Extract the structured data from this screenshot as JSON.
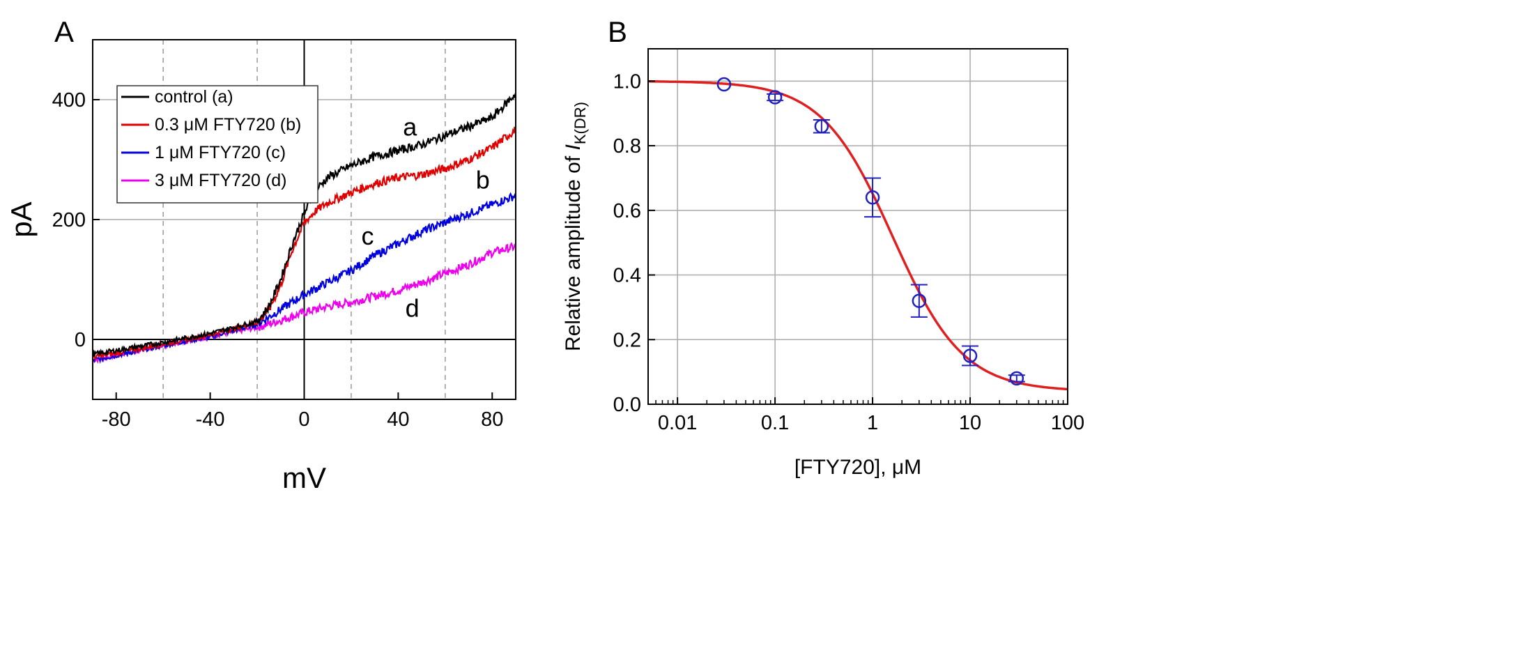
{
  "chart_data": [
    {
      "panel": "A",
      "type": "line",
      "xlabel": "mV",
      "ylabel": "pA",
      "xlim": [
        -90,
        90
      ],
      "ylim": [
        -100,
        500
      ],
      "xticks": [
        -80,
        -40,
        0,
        40,
        80
      ],
      "xtick_labels": [
        "-80",
        "-40",
        "0",
        "40",
        "80"
      ],
      "yticks": [
        0,
        200,
        400
      ],
      "ytick_labels": [
        "0",
        "200",
        "400"
      ],
      "dashed_gridlines_x": [
        -60,
        -20,
        20,
        60
      ],
      "solid_gridlines_y": [
        200,
        400
      ],
      "legend_position": "top-left",
      "series": [
        {
          "name": "control (a)",
          "label": "a",
          "color": "#000000",
          "x": [
            -90,
            -60,
            -40,
            -20,
            -15,
            -10,
            -5,
            0,
            5,
            10,
            20,
            30,
            40,
            50,
            60,
            70,
            80,
            90
          ],
          "y": [
            -25,
            -5,
            10,
            30,
            55,
            100,
            160,
            210,
            250,
            270,
            290,
            305,
            315,
            325,
            340,
            355,
            370,
            410
          ]
        },
        {
          "name": "0.3 μM FTY720 (b)",
          "label": "b",
          "color": "#e00000",
          "x": [
            -90,
            -60,
            -40,
            -20,
            -15,
            -10,
            -5,
            0,
            5,
            10,
            20,
            30,
            40,
            50,
            60,
            70,
            80,
            90
          ],
          "y": [
            -30,
            -8,
            8,
            28,
            50,
            90,
            150,
            195,
            215,
            228,
            245,
            260,
            270,
            275,
            285,
            300,
            320,
            350
          ]
        },
        {
          "name": "1 μM FTY720 (c)",
          "label": "c",
          "color": "#0000e0",
          "x": [
            -90,
            -60,
            -40,
            -20,
            -10,
            0,
            10,
            20,
            30,
            40,
            50,
            60,
            70,
            80,
            90
          ],
          "y": [
            -35,
            -10,
            5,
            25,
            50,
            75,
            95,
            115,
            140,
            160,
            180,
            195,
            210,
            225,
            240
          ]
        },
        {
          "name": "3 μM FTY720 (d)",
          "label": "d",
          "color": "#ee00ee",
          "x": [
            -90,
            -60,
            -40,
            -20,
            -10,
            0,
            10,
            20,
            30,
            40,
            50,
            60,
            70,
            80,
            90
          ],
          "y": [
            -35,
            -10,
            5,
            20,
            32,
            45,
            55,
            62,
            72,
            82,
            95,
            110,
            125,
            145,
            155
          ]
        }
      ],
      "curve_labels": [
        {
          "text": "a",
          "x": 45,
          "y": 340
        },
        {
          "text": "b",
          "x": 76,
          "y": 252
        },
        {
          "text": "c",
          "x": 27,
          "y": 158
        },
        {
          "text": "d",
          "x": 46,
          "y": 38
        }
      ]
    },
    {
      "panel": "B",
      "type": "scatter",
      "xlabel": "[FTY720], μM",
      "ylabel_prefix": "Relative amplitude of ",
      "ylabel_italic": "I",
      "ylabel_sub": "K(DR)",
      "xscale": "log",
      "xlim": [
        0.005,
        100
      ],
      "ylim": [
        0.0,
        1.1
      ],
      "xticks": [
        0.01,
        0.1,
        1,
        10,
        100
      ],
      "xtick_labels": [
        "0.01",
        "0.1",
        "1",
        "10",
        "100"
      ],
      "yticks": [
        0.0,
        0.2,
        0.4,
        0.6,
        0.8,
        1.0
      ],
      "ytick_labels": [
        "0.0",
        "0.2",
        "0.4",
        "0.6",
        "0.8",
        "1.0"
      ],
      "grid": true,
      "points": {
        "color": "#2020c0",
        "x": [
          0.03,
          0.1,
          0.3,
          1,
          3,
          10,
          30
        ],
        "y": [
          0.99,
          0.95,
          0.86,
          0.64,
          0.32,
          0.15,
          0.08
        ],
        "err": [
          0.0,
          0.01,
          0.02,
          0.06,
          0.05,
          0.03,
          0.01
        ]
      },
      "fit": {
        "color": "#e02020",
        "model": "hill",
        "top": 1.0,
        "bottom": 0.04,
        "ic50": 1.6,
        "hill": 1.2
      }
    }
  ]
}
